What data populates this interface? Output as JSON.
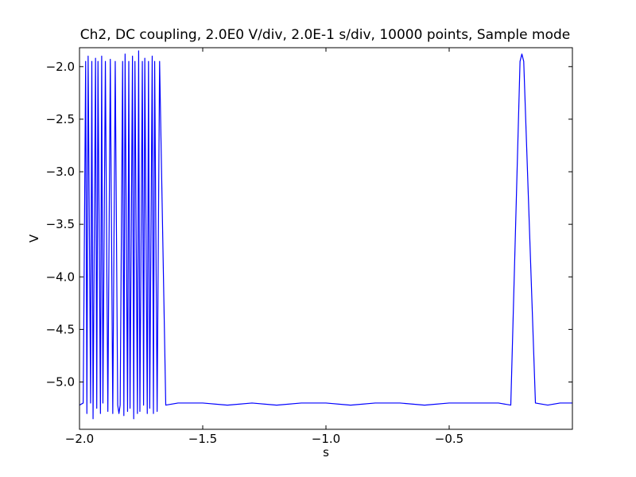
{
  "chart_data": {
    "type": "line",
    "title": "Ch2, DC coupling, 2.0E0 V/div, 2.0E-1 s/div, 10000 points, Sample mode",
    "xlabel": "s",
    "ylabel": "V",
    "xlim": [
      -2.0,
      0.0
    ],
    "ylim": [
      -5.45,
      -1.82
    ],
    "xticks": [
      -2.0,
      -1.5,
      -1.0,
      -0.5
    ],
    "xtick_labels": [
      "−2.0",
      "−1.5",
      "−1.0",
      "−0.5"
    ],
    "yticks": [
      -2.0,
      -2.5,
      -3.0,
      -3.5,
      -4.0,
      -4.5,
      -5.0
    ],
    "ytick_labels": [
      "−2.0",
      "−2.5",
      "−3.0",
      "−3.5",
      "−4.0",
      "−4.5",
      "−5.0"
    ],
    "grid": false,
    "legend": "none",
    "series": [
      {
        "color": "#0000ff",
        "low_level": -5.2,
        "high_level": -1.95,
        "high_segments": [
          [
            -1.975,
            -1.845
          ],
          [
            -1.825,
            -1.675
          ],
          [
            -0.2125,
            -0.1975
          ]
        ],
        "x": [
          -2.0,
          -1.985,
          -1.975,
          -1.97,
          -1.965,
          -1.955,
          -1.95,
          -1.945,
          -1.935,
          -1.93,
          -1.925,
          -1.915,
          -1.91,
          -1.905,
          -1.895,
          -1.885,
          -1.875,
          -1.865,
          -1.855,
          -1.845,
          -1.84,
          -1.835,
          -1.825,
          -1.82,
          -1.815,
          -1.805,
          -1.8,
          -1.795,
          -1.785,
          -1.78,
          -1.775,
          -1.765,
          -1.76,
          -1.755,
          -1.745,
          -1.74,
          -1.735,
          -1.725,
          -1.72,
          -1.715,
          -1.705,
          -1.7,
          -1.695,
          -1.685,
          -1.675,
          -1.65,
          -1.6,
          -1.5,
          -1.4,
          -1.3,
          -1.2,
          -1.1,
          -1.0,
          -0.9,
          -0.8,
          -0.7,
          -0.6,
          -0.5,
          -0.4,
          -0.3,
          -0.25,
          -0.2125,
          -0.205,
          -0.1975,
          -0.15,
          -0.1,
          -0.05,
          0.0
        ],
        "y": [
          -5.22,
          -5.2,
          -1.95,
          -5.3,
          -1.9,
          -5.2,
          -1.95,
          -5.35,
          -1.92,
          -5.25,
          -1.95,
          -5.3,
          -1.9,
          -5.2,
          -1.95,
          -5.28,
          -1.93,
          -5.3,
          -1.95,
          -5.22,
          -5.3,
          -5.22,
          -1.95,
          -5.32,
          -1.88,
          -5.28,
          -1.95,
          -5.25,
          -1.9,
          -5.35,
          -1.95,
          -5.3,
          -1.85,
          -5.28,
          -1.95,
          -5.22,
          -1.92,
          -5.3,
          -1.95,
          -5.25,
          -1.9,
          -5.3,
          -1.95,
          -5.28,
          -1.95,
          -5.22,
          -5.2,
          -5.2,
          -5.22,
          -5.2,
          -5.22,
          -5.2,
          -5.2,
          -5.22,
          -5.2,
          -5.2,
          -5.22,
          -5.2,
          -5.2,
          -5.2,
          -5.22,
          -1.95,
          -1.88,
          -1.95,
          -5.2,
          -5.22,
          -5.2,
          -5.2
        ]
      }
    ]
  }
}
